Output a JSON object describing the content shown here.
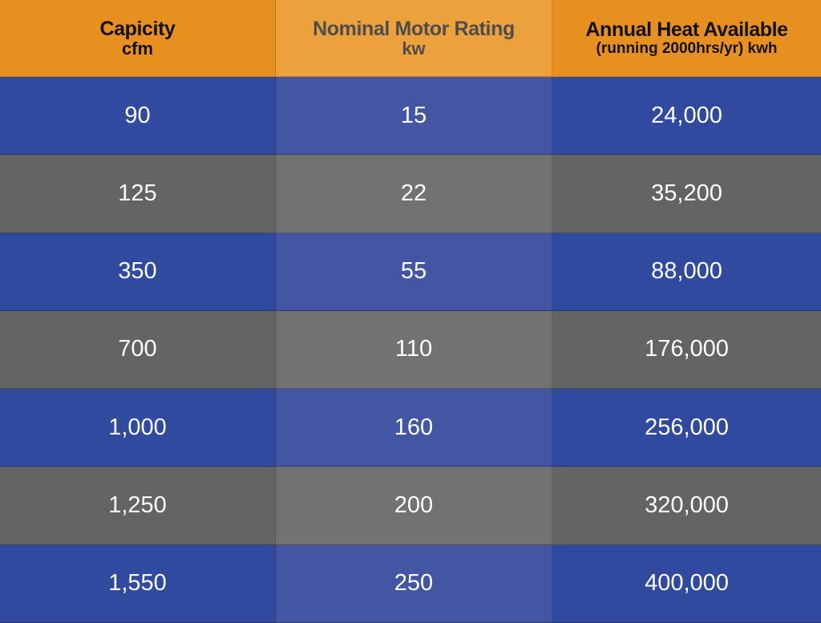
{
  "chart_data": {
    "type": "table",
    "columns": [
      {
        "line1": "Capicity",
        "line2": "cfm"
      },
      {
        "line1": "Nominal Motor Rating",
        "line2": "kw"
      },
      {
        "line1": "Annual Heat Available",
        "line2": "(running 2000hrs/yr) kwh"
      }
    ],
    "rows": [
      [
        "90",
        "15",
        "24,000"
      ],
      [
        "125",
        "22",
        "35,200"
      ],
      [
        "350",
        "55",
        "88,000"
      ],
      [
        "700",
        "110",
        "176,000"
      ],
      [
        "1,000",
        "160",
        "256,000"
      ],
      [
        "1,250",
        "200",
        "320,000"
      ],
      [
        "1,550",
        "250",
        "400,000"
      ]
    ]
  },
  "colors": {
    "header": "#e8901f",
    "header_middle": "#eda13c",
    "row_blue": "#2f4a9e",
    "row_blue_middle": "#4356a3",
    "row_gray": "#646464",
    "row_gray_middle": "#727272"
  }
}
